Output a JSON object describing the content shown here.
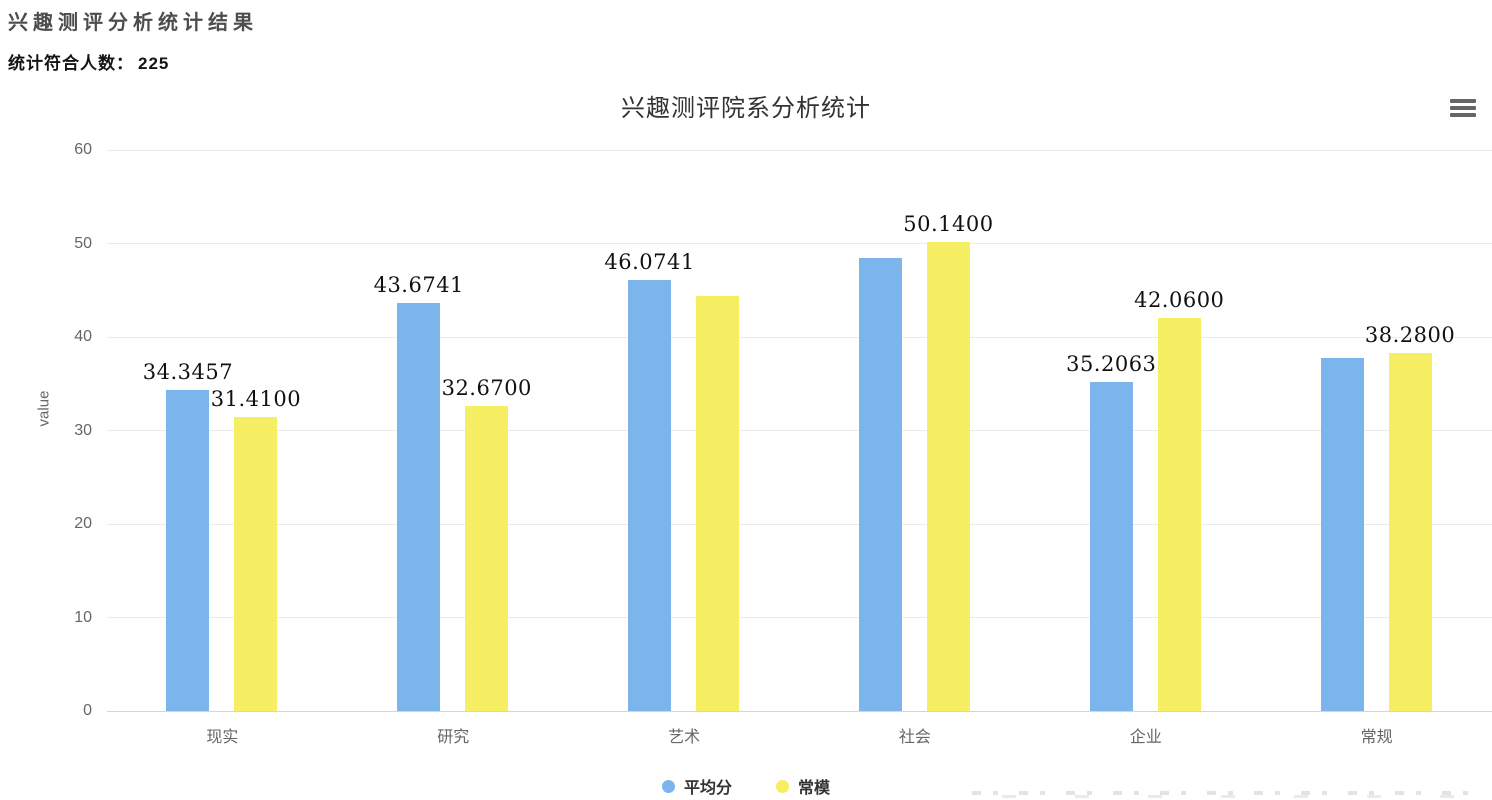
{
  "page": {
    "title": "兴趣测评分析统计结果",
    "stat_label": "统计符合人数：",
    "stat_value": "225"
  },
  "chart": {
    "menu_icon": "hamburger-icon",
    "colors": {
      "series_avg": "#7cb5ec",
      "series_norm": "#f6ee63",
      "axis_line": "#ccd6eb",
      "grid_line": "#ebebeb",
      "tick_label": "#666666",
      "title": "#333333",
      "data_label": "#111111"
    }
  },
  "chart_data": {
    "type": "bar",
    "title": "兴趣测评院系分析统计",
    "categories": [
      "现实",
      "研究",
      "艺术",
      "社会",
      "企业",
      "常规"
    ],
    "series": [
      {
        "key": "avg",
        "name": "平均分",
        "color": "#7cb5ec",
        "values": [
          34.3457,
          43.6741,
          46.0741,
          48.5,
          35.2063,
          37.75
        ],
        "data_labels": [
          "34.3457",
          "43.6741",
          "46.0741",
          null,
          "35.2063",
          null
        ]
      },
      {
        "key": "norm",
        "name": "常模",
        "color": "#f6ee63",
        "values": [
          31.41,
          32.67,
          44.36,
          50.14,
          42.06,
          38.28
        ],
        "data_labels": [
          "31.4100",
          "32.6700",
          null,
          "50.1400",
          "42.0600",
          "38.2800"
        ]
      }
    ],
    "xlabel": "",
    "ylabel": "value",
    "ylim": [
      0,
      60
    ],
    "yticks": [
      0,
      10,
      20,
      30,
      40,
      50,
      60
    ],
    "grid": true,
    "legend_position": "bottom-center"
  }
}
